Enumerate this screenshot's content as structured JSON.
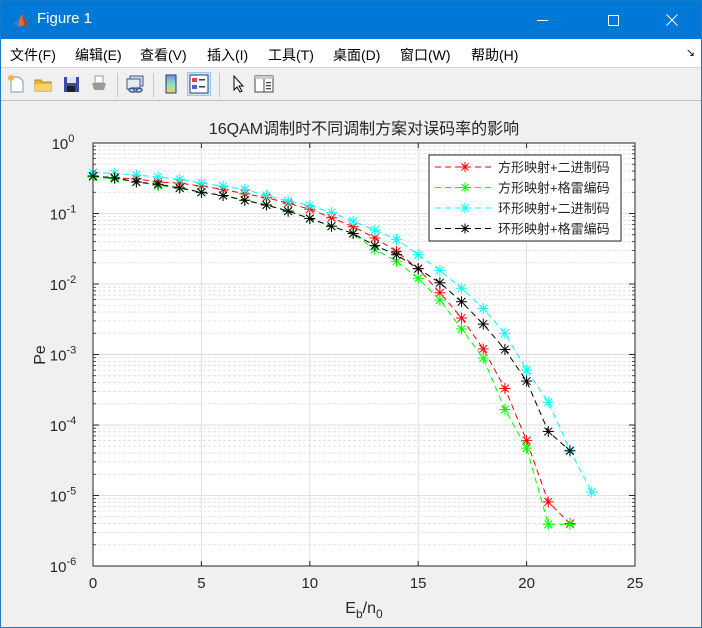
{
  "window": {
    "title": "Figure 1",
    "controls": {
      "minimize": "—",
      "maximize": "☐",
      "close": "✕"
    }
  },
  "menu": {
    "items": [
      {
        "label": "文件(F)"
      },
      {
        "label": "编辑(E)"
      },
      {
        "label": "查看(V)"
      },
      {
        "label": "插入(I)"
      },
      {
        "label": "工具(T)"
      },
      {
        "label": "桌面(D)"
      },
      {
        "label": "窗口(W)"
      },
      {
        "label": "帮助(H)"
      }
    ],
    "dock_arrow": "↘"
  },
  "toolbar": {
    "buttons": [
      {
        "icon": "new-figure-icon"
      },
      {
        "icon": "open-folder-icon"
      },
      {
        "icon": "save-icon"
      },
      {
        "icon": "print-icon"
      },
      {
        "icon": "link-plot-icon"
      },
      {
        "icon": "colorbar-icon"
      },
      {
        "icon": "legend-icon",
        "active": true
      },
      {
        "icon": "pointer-icon"
      },
      {
        "icon": "property-editor-icon"
      }
    ]
  },
  "colors": {
    "red": "#ff0000",
    "green": "#00ff00",
    "cyan": "#00ffff",
    "black": "#000000",
    "titlebar": "#0078d7"
  },
  "chart_data": {
    "type": "line",
    "title": "16QAM调制时不同调制方案对误码率的影响",
    "xlabel": "E_b/n_0",
    "ylabel": "Pe",
    "yscale": "log",
    "xlim": [
      0,
      25
    ],
    "ylim": [
      1e-06,
      1
    ],
    "xticks": [
      0,
      5,
      10,
      15,
      20,
      25
    ],
    "yticks": [
      1e-06,
      1e-05,
      0.0001,
      0.001,
      0.01,
      0.1,
      1
    ],
    "ytick_labels": [
      "10^-6",
      "10^-5",
      "10^-4",
      "10^-3",
      "10^-2",
      "10^-1",
      "10^0"
    ],
    "grid": true,
    "minor_grid": true,
    "legend_position": "northeast",
    "series": [
      {
        "name": "方形映射+二进制码",
        "color": "#ff0000",
        "style": "--*",
        "x": [
          0,
          1,
          2,
          3,
          4,
          5,
          6,
          7,
          8,
          9,
          10,
          11,
          12,
          13,
          14,
          15,
          16,
          17,
          18,
          19,
          20,
          21,
          22
        ],
        "values": [
          0.34,
          0.32,
          0.31,
          0.28,
          0.27,
          0.245,
          0.22,
          0.19,
          0.168,
          0.14,
          0.115,
          0.087,
          0.065,
          0.045,
          0.029,
          0.0165,
          0.0075,
          0.0033,
          0.0012,
          0.00033,
          6e-05,
          8.1e-06,
          4e-06
        ]
      },
      {
        "name": "方形映射+格雷编码",
        "color": "#00ff00",
        "style": "--*",
        "x": [
          0,
          1,
          2,
          3,
          4,
          5,
          6,
          7,
          8,
          9,
          10,
          11,
          12,
          13,
          14,
          15,
          16,
          17,
          18,
          19,
          20,
          21,
          22
        ],
        "values": [
          0.33,
          0.31,
          0.28,
          0.25,
          0.23,
          0.2,
          0.18,
          0.154,
          0.132,
          0.108,
          0.085,
          0.066,
          0.052,
          0.031,
          0.021,
          0.012,
          0.0059,
          0.0023,
          0.00089,
          0.000166,
          4.7e-05,
          3.9e-06,
          3.9e-06
        ]
      },
      {
        "name": "环形映射+二进制码",
        "color": "#00ffff",
        "style": "--*",
        "x": [
          0,
          1,
          2,
          3,
          4,
          5,
          6,
          7,
          8,
          9,
          10,
          11,
          12,
          13,
          14,
          15,
          16,
          17,
          18,
          19,
          20,
          21,
          22,
          23
        ],
        "values": [
          0.38,
          0.37,
          0.35,
          0.33,
          0.305,
          0.27,
          0.245,
          0.22,
          0.18,
          0.15,
          0.13,
          0.103,
          0.078,
          0.058,
          0.043,
          0.026,
          0.0156,
          0.0087,
          0.0045,
          0.002,
          0.0006,
          0.00021,
          4.4e-05,
          1.12e-05
        ]
      },
      {
        "name": "环形映射+格雷编码",
        "color": "#000000",
        "style": "--*",
        "x": [
          0,
          1,
          2,
          3,
          4,
          5,
          6,
          7,
          8,
          9,
          10,
          11,
          12,
          13,
          14,
          15,
          16,
          17,
          18,
          19,
          20,
          21,
          22
        ],
        "values": [
          0.34,
          0.32,
          0.28,
          0.26,
          0.23,
          0.2,
          0.18,
          0.154,
          0.132,
          0.108,
          0.085,
          0.066,
          0.052,
          0.035,
          0.026,
          0.0165,
          0.0104,
          0.0056,
          0.0027,
          0.00118,
          0.00042,
          8.1e-05,
          4.3e-05
        ]
      }
    ]
  }
}
